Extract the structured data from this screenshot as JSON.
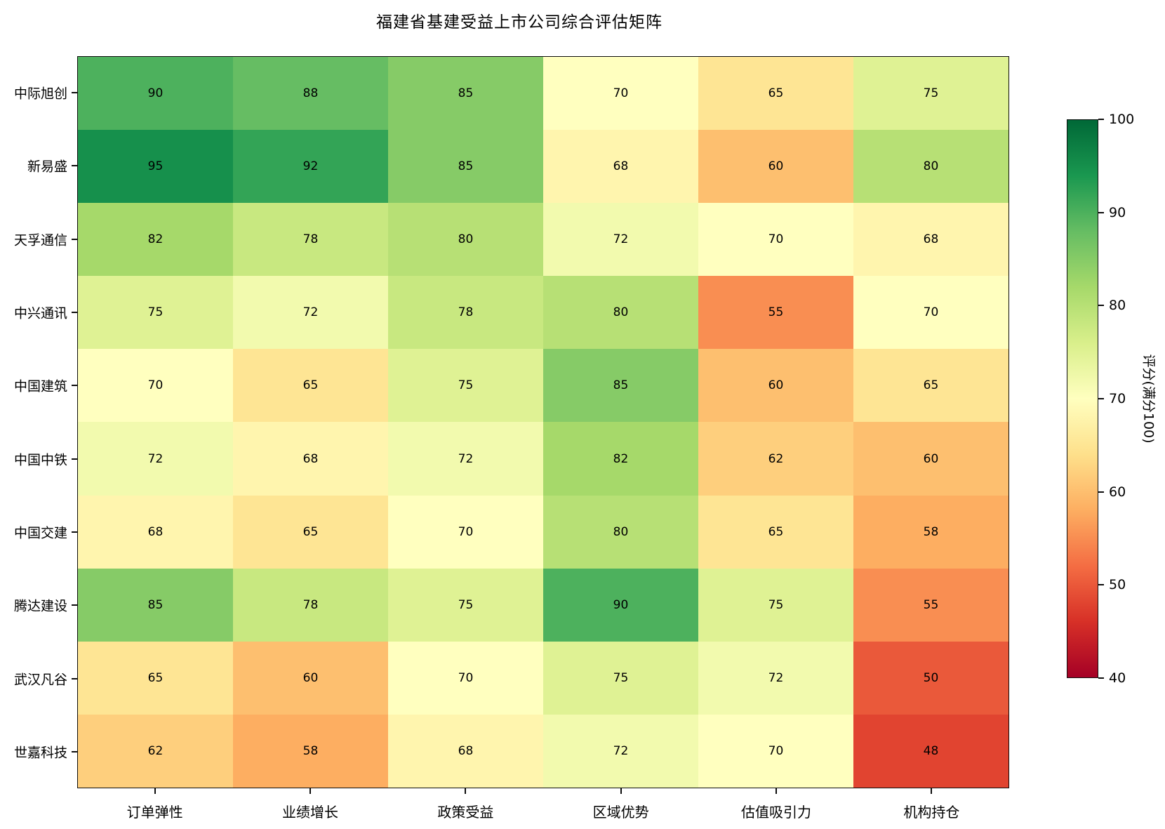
{
  "figure": {
    "background": "#ffffff",
    "text_color": "#000000",
    "spine_color": "#0d0d0d"
  },
  "chart_data": {
    "type": "heatmap",
    "title": "福建省基建受益上市公司综合评估矩阵",
    "columns": [
      "订单弹性",
      "业绩增长",
      "政策受益",
      "区域优势",
      "估值吸引力",
      "机构持仓"
    ],
    "rows": [
      "中际旭创",
      "新易盛",
      "天孚通信",
      "中兴通讯",
      "中国建筑",
      "中国中铁",
      "中国交建",
      "腾达建设",
      "武汉凡谷",
      "世嘉科技"
    ],
    "values": [
      [
        90,
        88,
        85,
        70,
        65,
        75
      ],
      [
        95,
        92,
        85,
        68,
        60,
        80
      ],
      [
        82,
        78,
        80,
        72,
        70,
        68
      ],
      [
        75,
        72,
        78,
        80,
        55,
        70
      ],
      [
        70,
        65,
        75,
        85,
        60,
        65
      ],
      [
        72,
        68,
        72,
        82,
        62,
        60
      ],
      [
        68,
        65,
        70,
        80,
        65,
        58
      ],
      [
        85,
        78,
        75,
        90,
        75,
        55
      ],
      [
        65,
        60,
        70,
        75,
        72,
        50
      ],
      [
        62,
        58,
        68,
        72,
        70,
        48
      ]
    ],
    "vmin": 40,
    "vmax": 100,
    "annotation_color": "#000000",
    "grid": false,
    "colormap": {
      "name": "RdYlGn",
      "anchors": [
        "#a50026",
        "#d73027",
        "#f46d43",
        "#fdae61",
        "#fee08b",
        "#ffffbf",
        "#d9ef8b",
        "#a6d96a",
        "#66bd63",
        "#1a9850",
        "#006837"
      ]
    },
    "colorbar": {
      "label": "评分(满分100)",
      "ticks": [
        100,
        90,
        80,
        70,
        60,
        50,
        40
      ],
      "position": "right"
    }
  }
}
